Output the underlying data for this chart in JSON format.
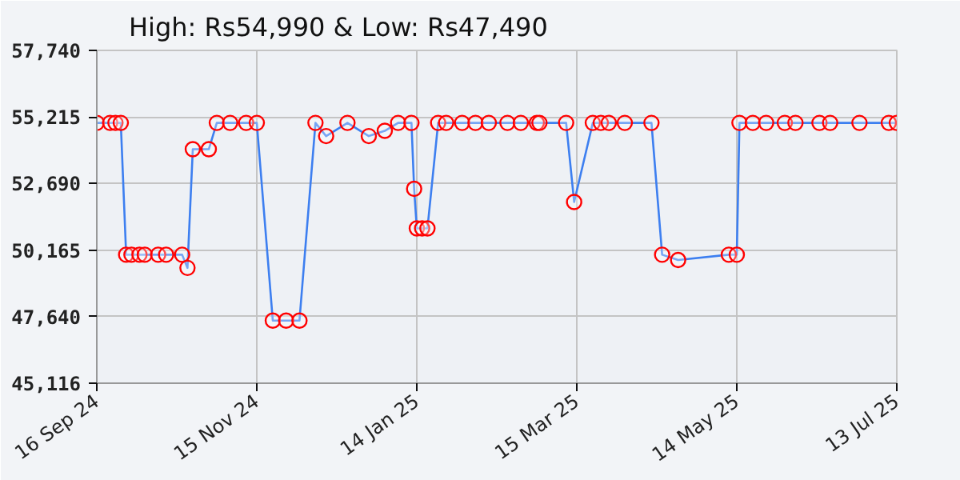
{
  "chart_data": {
    "type": "line",
    "title": "High: Rs54,990 & Low: Rs47,490",
    "x": [
      "2024-09-16",
      "2024-09-21",
      "2024-09-23",
      "2024-09-25",
      "2024-09-27",
      "2024-09-29",
      "2024-10-02",
      "2024-10-04",
      "2024-10-09",
      "2024-10-12",
      "2024-10-18",
      "2024-10-20",
      "2024-10-22",
      "2024-10-28",
      "2024-10-31",
      "2024-11-05",
      "2024-11-11",
      "2024-11-15",
      "2024-11-21",
      "2024-11-26",
      "2024-12-01",
      "2024-12-07",
      "2024-12-11",
      "2024-12-19",
      "2024-12-27",
      "2025-01-02",
      "2025-01-07",
      "2025-01-12",
      "2025-01-13",
      "2025-01-14",
      "2025-01-16",
      "2025-01-18",
      "2025-01-22",
      "2025-01-25",
      "2025-01-31",
      "2025-02-05",
      "2025-02-10",
      "2025-02-17",
      "2025-02-22",
      "2025-02-28",
      "2025-03-01",
      "2025-03-11",
      "2025-03-14",
      "2025-03-21",
      "2025-03-24",
      "2025-03-27",
      "2025-04-02",
      "2025-04-12",
      "2025-04-16",
      "2025-04-22",
      "2025-05-11",
      "2025-05-14",
      "2025-05-15",
      "2025-05-20",
      "2025-05-25",
      "2025-06-01",
      "2025-06-05",
      "2025-06-14",
      "2025-06-18",
      "2025-06-29",
      "2025-07-10",
      "2025-07-13"
    ],
    "series": [
      {
        "color": "#3d7ff0",
        "values": [
          54990,
          54990,
          54990,
          54990,
          49990,
          49990,
          49990,
          49990,
          49990,
          49990,
          49990,
          49490,
          53990,
          53990,
          54990,
          54990,
          54990,
          54990,
          47490,
          47490,
          47490,
          54990,
          54490,
          54990,
          54490,
          54690,
          54990,
          54990,
          52490,
          50990,
          50990,
          50990,
          54990,
          54990,
          54990,
          54990,
          54990,
          54990,
          54990,
          54990,
          54990,
          54990,
          51990,
          54990,
          54990,
          54990,
          54990,
          54990,
          49990,
          49790,
          49990,
          49990,
          54990,
          54990,
          54990,
          54990,
          54990,
          54990,
          54990,
          54990,
          54990,
          54990
        ]
      }
    ],
    "marker": "circle",
    "line_style": "solid",
    "grid": true,
    "xlim": [
      "2024-09-16",
      "2025-07-13"
    ],
    "xticks": [
      {
        "value": "2024-09-16",
        "label": "16 Sep 24"
      },
      {
        "value": "2024-11-15",
        "label": "15 Nov 24"
      },
      {
        "value": "2025-01-14",
        "label": "14 Jan 25"
      },
      {
        "value": "2025-03-15",
        "label": "15 Mar 25"
      },
      {
        "value": "2025-05-14",
        "label": "14 May 25"
      },
      {
        "value": "2025-07-13",
        "label": "13 Jul 25"
      }
    ],
    "ylim": [
      45116,
      57740
    ],
    "yticks": [
      {
        "value": 45116,
        "label": "45,116"
      },
      {
        "value": 47640,
        "label": "47,640"
      },
      {
        "value": 50165,
        "label": "50,165"
      },
      {
        "value": 52690,
        "label": "52,690"
      },
      {
        "value": 55215,
        "label": "55,215"
      },
      {
        "value": 57740,
        "label": "57,740"
      }
    ]
  }
}
